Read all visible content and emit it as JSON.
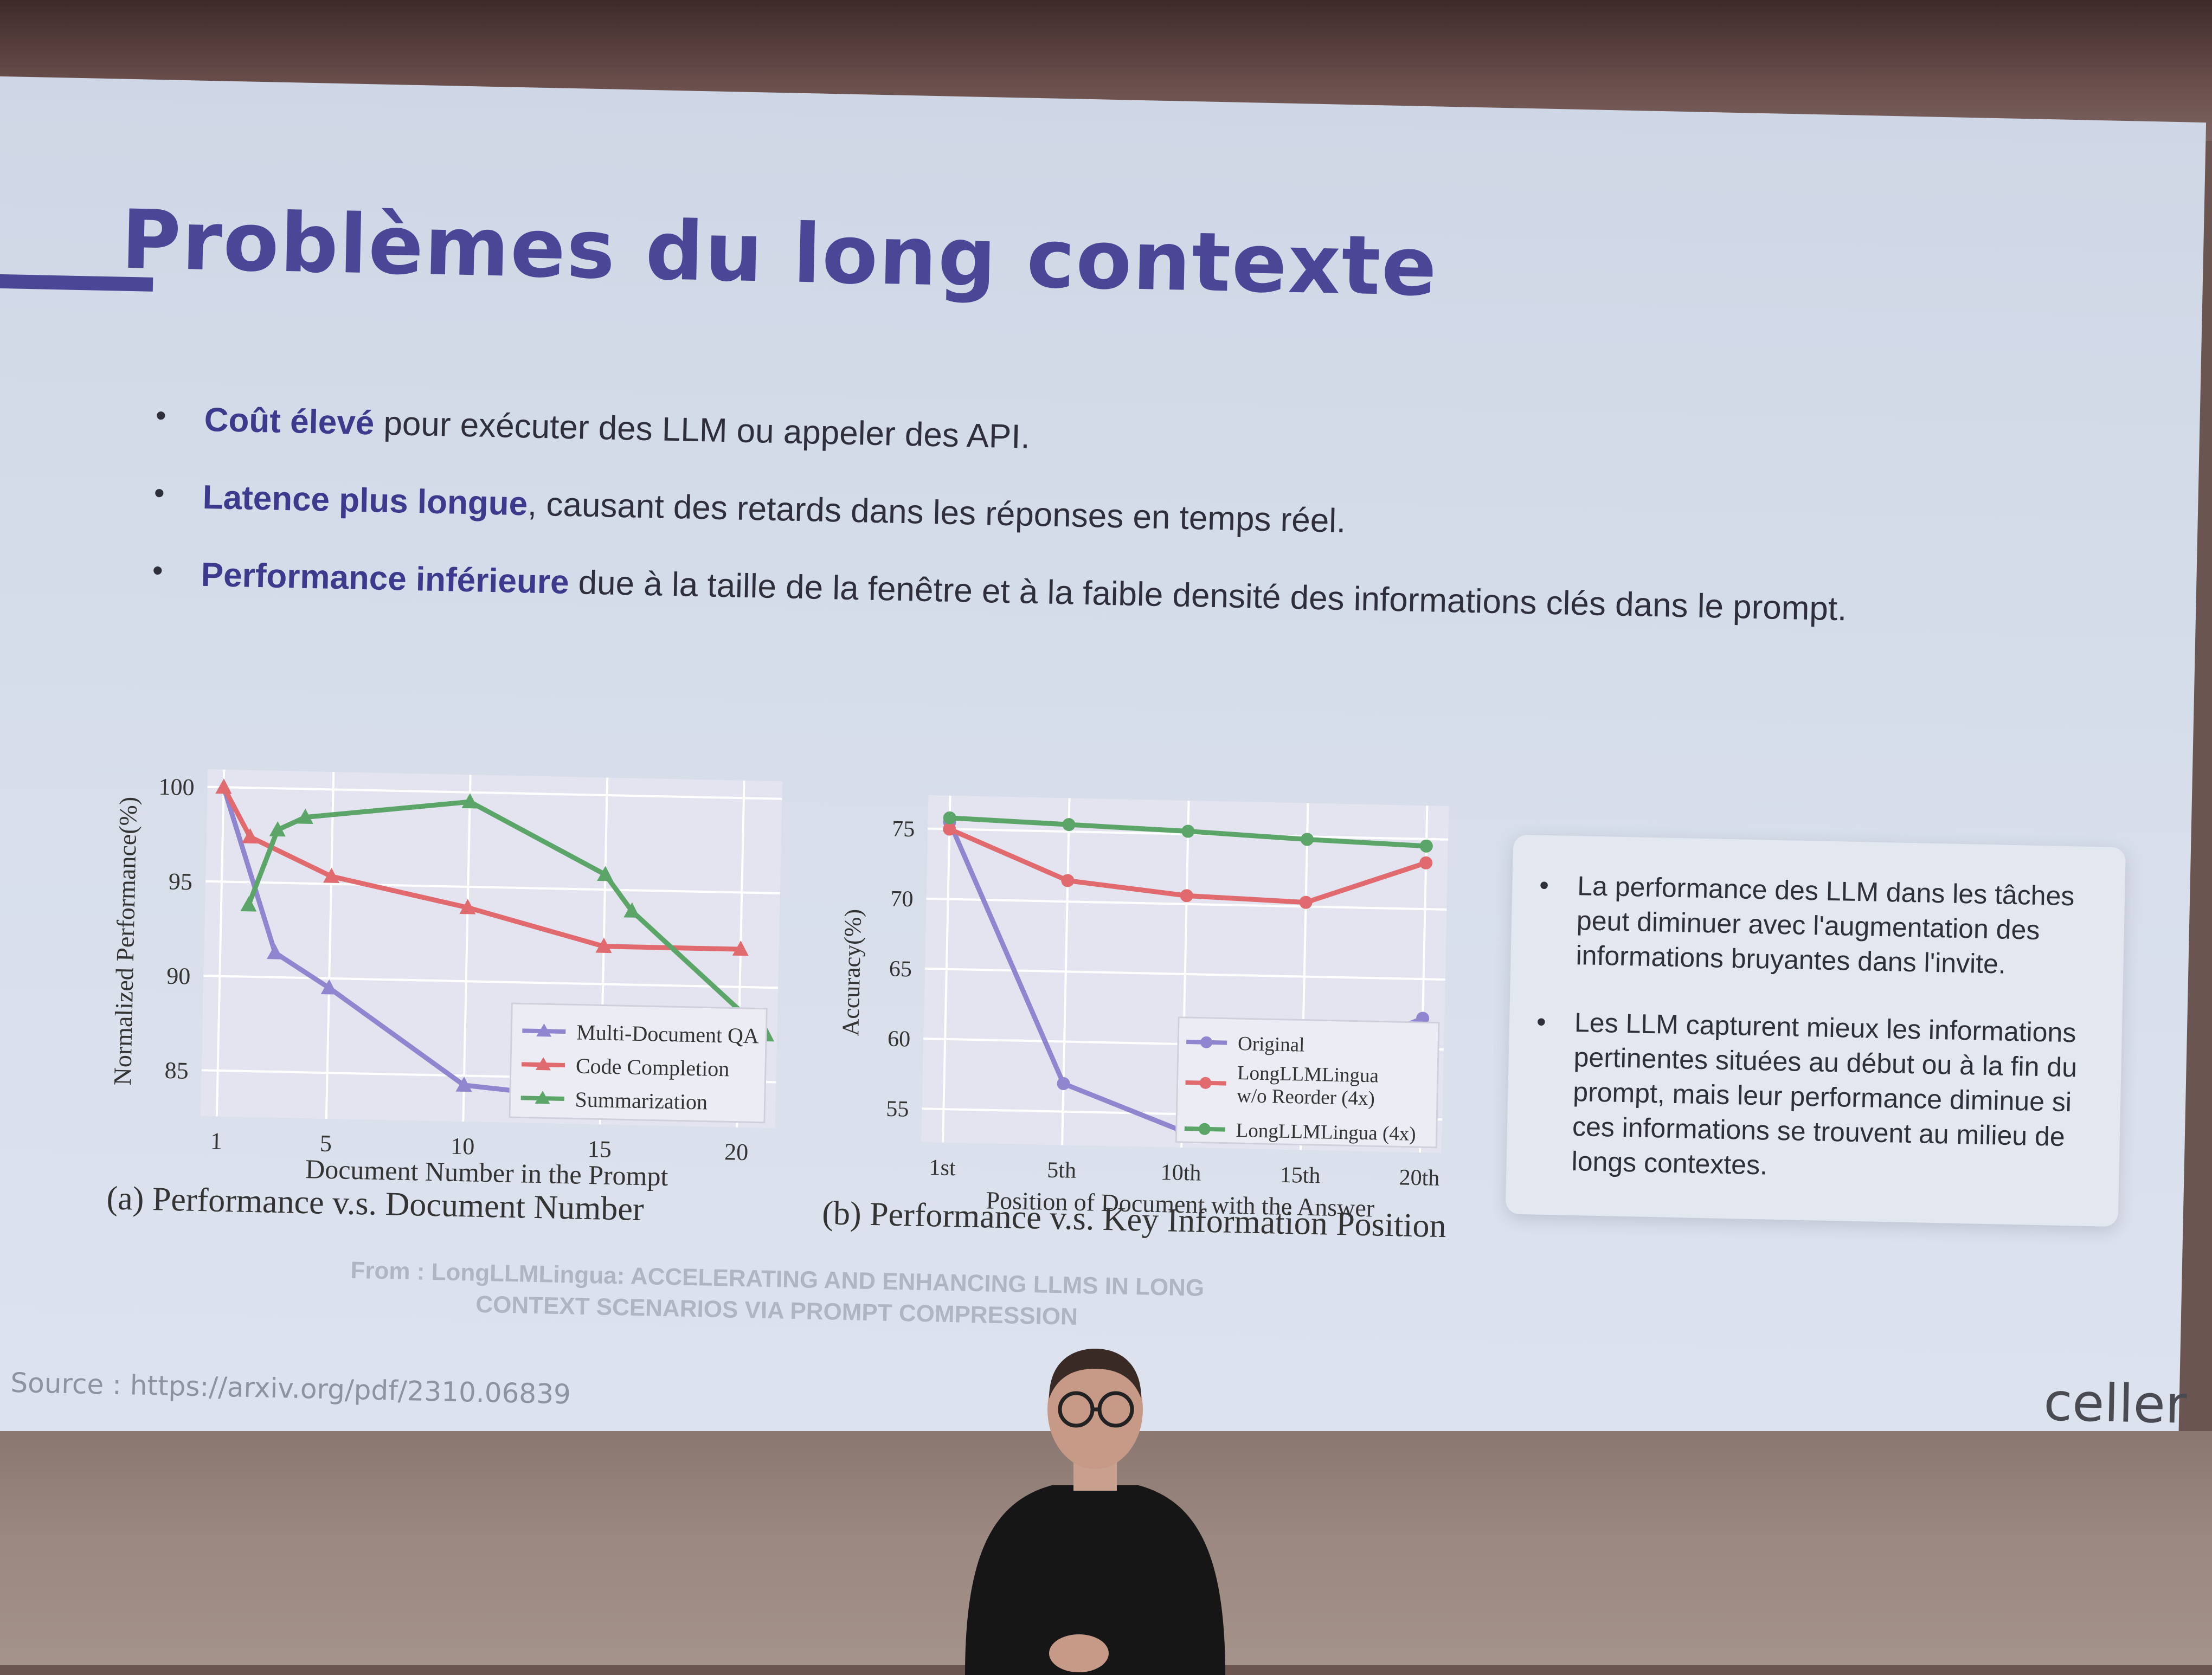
{
  "slide": {
    "title": "Problèmes du long contexte",
    "bullets": [
      {
        "strong": "Coût élevé",
        "rest": " pour exécuter des LLM ou appeler des API."
      },
      {
        "strong": "Latence plus longue",
        "rest": ", causant des retards dans les réponses en temps réel."
      },
      {
        "strong": "Performance inférieure",
        "rest": " due à la taille de la fenêtre et à la faible densité des informations clés dans le prompt."
      }
    ],
    "figure_a": {
      "caption": "(a) Performance v.s. Document Number",
      "xlabel": "Document Number in the Prompt",
      "ylabel": "Normalized Performance(%)",
      "yticks": [
        "100",
        "95",
        "90",
        "85"
      ],
      "xticks": [
        "1",
        "5",
        "10",
        "15",
        "20"
      ],
      "legend": [
        "Multi-Document QA",
        "Code Completion",
        "Summarization"
      ]
    },
    "figure_b": {
      "caption": "(b) Performance v.s. Key Information Position",
      "xlabel": "Position of Document with the Answer",
      "ylabel": "Accuracy(%)",
      "yticks": [
        "75",
        "70",
        "65",
        "60",
        "55"
      ],
      "xticks": [
        "1st",
        "5th",
        "10th",
        "15th",
        "20th"
      ],
      "legend": [
        "Original",
        "LongLLMLingua",
        "w/o Reorder (4x)",
        "LongLLMLingua (4x)"
      ]
    },
    "from_line1": "From : LongLLMLingua: ACCELERATING AND ENHANCING LLMS IN LONG",
    "from_line2": "CONTEXT SCENARIOS VIA PROMPT COMPRESSION",
    "notes": [
      "La performance des LLM dans les tâches peut diminuer avec l'augmentation des informations bruyantes dans l'invite.",
      "Les LLM capturent mieux les informations pertinentes situées au début ou à la fin du prompt, mais leur performance diminue si ces informations se trouvent au milieu de longs contextes."
    ],
    "source": "Source : https://arxiv.org/pdf/2310.06839",
    "logo": "celler"
  },
  "colors": {
    "title": "#4c4697",
    "purple_series": "#8f86cf",
    "red_series": "#e06a6e",
    "green_series": "#5aa567"
  },
  "chart_data": [
    {
      "type": "line",
      "title": "(a) Performance v.s. Document Number",
      "xlabel": "Document Number in the Prompt",
      "ylabel": "Normalized Performance(%)",
      "ylim": [
        83,
        100.5
      ],
      "xlim": [
        1,
        21
      ],
      "legend_position": "bottom-right",
      "series": [
        {
          "name": "Multi-Document QA",
          "x": [
            1,
            3,
            5,
            10,
            20
          ],
          "values": [
            100,
            91.3,
            89.5,
            84.5,
            83.2
          ]
        },
        {
          "name": "Code Completion",
          "x": [
            1,
            2,
            5,
            10,
            15,
            20
          ],
          "values": [
            100,
            97.4,
            95.4,
            93.9,
            92,
            92
          ]
        },
        {
          "name": "Summarization",
          "x": [
            2,
            3,
            4,
            10,
            15,
            16,
            21
          ],
          "values": [
            93.8,
            97.8,
            98.5,
            99.5,
            95.8,
            93.9,
            87.5
          ]
        }
      ]
    },
    {
      "type": "line",
      "title": "(b) Performance v.s. Key Information Position",
      "xlabel": "Position of Document with the Answer",
      "ylabel": "Accuracy(%)",
      "categories": [
        "1st",
        "5th",
        "10th",
        "15th",
        "20th"
      ],
      "ylim": [
        53,
        77
      ],
      "legend_position": "bottom-right",
      "series": [
        {
          "name": "Original",
          "values": [
            75.5,
            57,
            53.8,
            58.5,
            62.2
          ]
        },
        {
          "name": "LongLLMLingua w/o Reorder (4x)",
          "values": [
            75.0,
            71.5,
            70.6,
            70.3,
            73.3
          ]
        },
        {
          "name": "LongLLMLingua (4x)",
          "values": [
            75.8,
            75.5,
            75.2,
            74.8,
            74.5
          ]
        }
      ]
    }
  ]
}
